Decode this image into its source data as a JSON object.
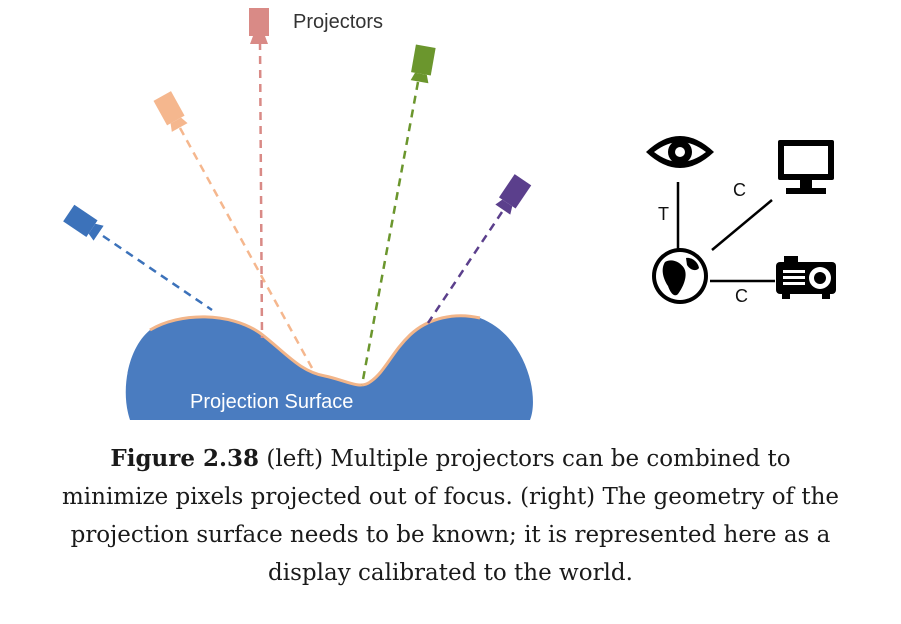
{
  "diagram": {
    "title": "Projectors",
    "surface_label": "Projection Surface",
    "edge_labels": {
      "eye_world": "T",
      "world_monitor": "C",
      "world_projector": "C"
    },
    "colors": {
      "surface": "#4a7cc0",
      "surface_edge": "#f2b589",
      "projector_red": "#d98a86",
      "projector_peach": "#f5b78e",
      "projector_green": "#6b962d",
      "projector_blue": "#3c72ba",
      "projector_purple": "#5b3f8c",
      "icons": "#000000"
    },
    "icons": [
      "eye-icon",
      "monitor-icon",
      "globe-icon",
      "projector-icon"
    ]
  },
  "caption": {
    "label": "Figure 2.38",
    "line1_rest": " (left) Multiple projectors can be combined to",
    "line2": "minimize pixels projected out of focus. (right) The geometry of the",
    "line3": "projection surface needs to be known; it is represented here as a",
    "line4": "display calibrated to the world."
  }
}
